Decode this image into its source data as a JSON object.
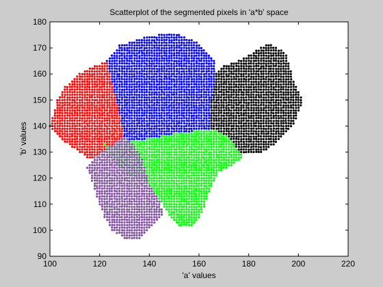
{
  "chart_data": {
    "type": "scatter",
    "title": "Scatterplot of the segmented pixels in 'a*b' space",
    "xlabel": "'a' values",
    "ylabel": "'b' values",
    "xlim": [
      100,
      220
    ],
    "ylim": [
      90,
      180
    ],
    "xticks": [
      "100",
      "120",
      "140",
      "160",
      "180",
      "200",
      "220"
    ],
    "yticks": [
      "90",
      "100",
      "110",
      "120",
      "130",
      "140",
      "150",
      "160",
      "170",
      "180"
    ],
    "grid": false,
    "legend": "none",
    "series": [
      {
        "color": "#ff0000",
        "region": [
          [
            100,
            140
          ],
          [
            103,
            150
          ],
          [
            106,
            155
          ],
          [
            112,
            160
          ],
          [
            118,
            163
          ],
          [
            123,
            165
          ],
          [
            130,
            136
          ],
          [
            124,
            132
          ],
          [
            116,
            127
          ],
          [
            112,
            130
          ],
          [
            106,
            134
          ]
        ]
      },
      {
        "color": "#0000ff",
        "region": [
          [
            123,
            165
          ],
          [
            128,
            171
          ],
          [
            138,
            174
          ],
          [
            150,
            176
          ],
          [
            160,
            172
          ],
          [
            167,
            165
          ],
          [
            167,
            160
          ],
          [
            165,
            150
          ],
          [
            165,
            139
          ],
          [
            150,
            137
          ],
          [
            133,
            134
          ],
          [
            130,
            136
          ]
        ]
      },
      {
        "color": "#000000",
        "region": [
          [
            167,
            160
          ],
          [
            170,
            163
          ],
          [
            178,
            166
          ],
          [
            188,
            172
          ],
          [
            195,
            168
          ],
          [
            198,
            158
          ],
          [
            202,
            150
          ],
          [
            198,
            140
          ],
          [
            192,
            134
          ],
          [
            186,
            130
          ],
          [
            182,
            129
          ],
          [
            176,
            130
          ],
          [
            172,
            136
          ],
          [
            165,
            139
          ],
          [
            165,
            150
          ]
        ]
      },
      {
        "color": "#00ff00",
        "region": [
          [
            120,
            136
          ],
          [
            124,
            132
          ],
          [
            130,
            136
          ],
          [
            133,
            134
          ],
          [
            150,
            137
          ],
          [
            165,
            139
          ],
          [
            172,
            136
          ],
          [
            178,
            128
          ],
          [
            175,
            126
          ],
          [
            168,
            122
          ],
          [
            164,
            114
          ],
          [
            162,
            108
          ],
          [
            160,
            104
          ],
          [
            156,
            101
          ],
          [
            152,
            102
          ],
          [
            148,
            106
          ],
          [
            144,
            112
          ],
          [
            140,
            118
          ],
          [
            130,
            122
          ],
          [
            124,
            130
          ]
        ]
      },
      {
        "color": "#7f4fa0",
        "region": [
          [
            115,
            124
          ],
          [
            118,
            128
          ],
          [
            124,
            132
          ],
          [
            130,
            136
          ],
          [
            133,
            134
          ],
          [
            137,
            128
          ],
          [
            140,
            118
          ],
          [
            144,
            112
          ],
          [
            146,
            106
          ],
          [
            140,
            100
          ],
          [
            135,
            96
          ],
          [
            130,
            97
          ],
          [
            125,
            100
          ],
          [
            122,
            105
          ],
          [
            120,
            110
          ],
          [
            118,
            116
          ]
        ]
      }
    ]
  }
}
